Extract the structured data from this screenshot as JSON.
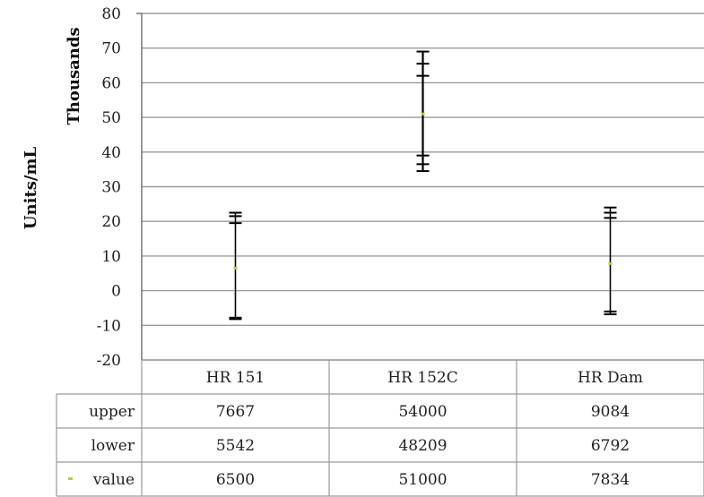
{
  "chart_data": {
    "type": "table",
    "ylabel": "Units/mL",
    "yunit": "Thousands",
    "ylim": [
      -20,
      80
    ],
    "yticks": [
      "80",
      "70",
      "60",
      "50",
      "40",
      "30",
      "20",
      "10",
      "0",
      "-10",
      "-20"
    ],
    "grid": true,
    "categories": [
      "HR 151",
      "HR 152C",
      "HR Dam"
    ],
    "series": [
      {
        "name": "upper",
        "values": [
          7667,
          54000,
          9084
        ]
      },
      {
        "name": "lower",
        "values": [
          5542,
          48209,
          6792
        ]
      },
      {
        "name": "value",
        "values": [
          6500,
          51000,
          7834
        ]
      }
    ],
    "errorbars": [
      {
        "category": "HR 151",
        "outer_top": 22500,
        "outer_bottom": -7800,
        "inner": [
          21500,
          19500,
          -8200
        ]
      },
      {
        "category": "HR 152C",
        "outer_top": 69000,
        "outer_bottom": 34500,
        "inner": [
          65500,
          62000,
          39000,
          36500
        ]
      },
      {
        "category": "HR Dam",
        "outer_top": 24000,
        "outer_bottom": -6800,
        "inner": [
          22500,
          21000,
          -6000
        ]
      }
    ],
    "table_rows": [
      {
        "label": "upper",
        "cells": [
          "7667",
          "54000",
          "9084"
        ]
      },
      {
        "label": "lower",
        "cells": [
          "5542",
          "48209",
          "6792"
        ]
      },
      {
        "label": "value",
        "cells": [
          "6500",
          "51000",
          "7834"
        ]
      }
    ],
    "colors": {
      "value_marker": "#c8c830",
      "grid": "#9a9a9a",
      "axis": "#555555",
      "bar": "#000000"
    }
  }
}
